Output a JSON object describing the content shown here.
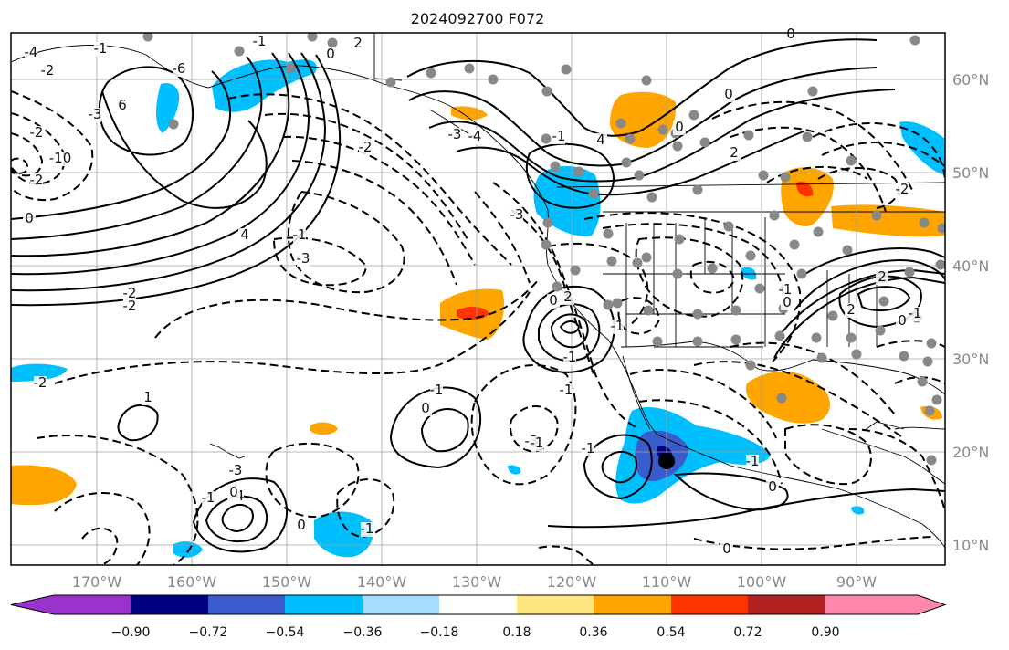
{
  "title": "2024092700 F072",
  "longitude_labels": [
    "170°W",
    "160°W",
    "150°W",
    "140°W",
    "130°W",
    "120°W",
    "110°W",
    "100°W",
    "90°W"
  ],
  "latitude_labels": [
    "60°N",
    "50°N",
    "40°N",
    "30°N",
    "20°N",
    "10°N"
  ],
  "colorbar": {
    "ticks": [
      "−0.90",
      "−0.72",
      "−0.54",
      "−0.36",
      "−0.18",
      "0.18",
      "0.36",
      "0.54",
      "0.72",
      "0.90"
    ],
    "colors": [
      "#9933cc",
      "#000080",
      "#3a5bcc",
      "#00bfff",
      "#a6dcff",
      "#ffffff",
      "#ffe680",
      "#ffa500",
      "#ff3300",
      "#b22222",
      "#ff88aa"
    ]
  },
  "contour_labels": [
    "-4",
    "-1",
    "-2",
    "6",
    "-3",
    "-2",
    "-10",
    "0",
    "-2",
    "-6",
    "-1",
    "0",
    "2",
    "-2",
    "-1",
    "-3",
    "-4",
    "-3",
    "4",
    "-2",
    "-2",
    "-1",
    "0",
    "4",
    "0",
    "0",
    "2",
    "-3",
    "0",
    "-2",
    "2",
    "-1",
    "0",
    "2",
    "0",
    "-1",
    "-1",
    "2",
    "-1",
    "-1",
    "-3",
    "-1",
    "-1",
    "1",
    "-1",
    "0",
    "-4",
    "-3",
    "-1",
    "0",
    "0",
    "-1",
    "0",
    "-1",
    "0",
    "-2"
  ],
  "colors": {
    "frame": "#000000",
    "grid": "#a0a0a0",
    "station_dot": "#888888"
  }
}
